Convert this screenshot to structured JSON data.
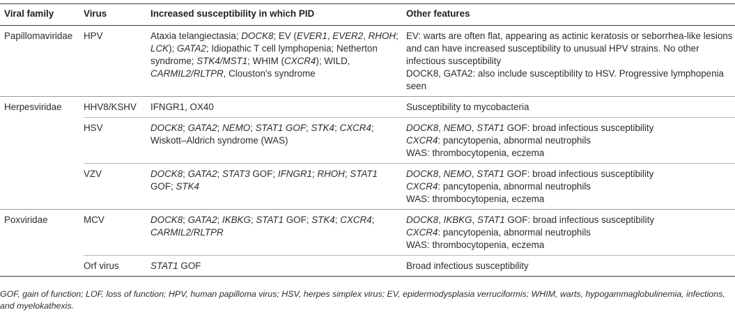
{
  "headers": [
    "Viral family",
    "Virus",
    "Increased susceptibility in which PID",
    "Other features"
  ],
  "rows": [
    {
      "family": "Papillomaviridae",
      "virus": "HPV",
      "pid": [
        {
          "t": "Ataxia telangiectasia; ",
          "i": false
        },
        {
          "t": "DOCK8",
          "i": true
        },
        {
          "t": "; EV (",
          "i": false
        },
        {
          "t": "EVER1",
          "i": true
        },
        {
          "t": ", ",
          "i": false
        },
        {
          "t": "EVER2",
          "i": true
        },
        {
          "t": ", ",
          "i": false
        },
        {
          "t": "RHOH",
          "i": true
        },
        {
          "t": "; ",
          "i": false
        },
        {
          "t": "LCK",
          "i": true
        },
        {
          "t": "); ",
          "i": false
        },
        {
          "t": "GATA2",
          "i": true
        },
        {
          "t": "; Idiopathic T cell lymphopenia; Netherton syndrome; ",
          "i": false
        },
        {
          "t": "STK4/MST1",
          "i": true
        },
        {
          "t": "; WHIM (",
          "i": false
        },
        {
          "t": "CXCR4",
          "i": true
        },
        {
          "t": "); WILD, ",
          "i": false
        },
        {
          "t": "CARMIL2/RLTPR",
          "i": true
        },
        {
          "t": ", Clouston's syndrome",
          "i": false
        }
      ],
      "features": [
        [
          {
            "t": "EV: warts are often flat, appearing as actinic keratosis or seborrhea-like lesions and can have increased susceptibility to unusual HPV strains. No other infectious susceptibility",
            "i": false
          }
        ],
        [
          {
            "t": "DOCK8, GATA2: also include susceptibility to HSV. Progressive lymphopenia seen",
            "i": false
          }
        ]
      ]
    },
    {
      "family": "Herpesviridae",
      "virus": "HHV8/KSHV",
      "pid": [
        {
          "t": "IFNGR1, OX40",
          "i": false
        }
      ],
      "features": [
        [
          {
            "t": "Susceptibility to mycobacteria",
            "i": false
          }
        ]
      ]
    },
    {
      "family": "",
      "virus": "HSV",
      "pid": [
        {
          "t": "DOCK8",
          "i": true
        },
        {
          "t": "; ",
          "i": false
        },
        {
          "t": "GATA2",
          "i": true
        },
        {
          "t": "; ",
          "i": false
        },
        {
          "t": "NEMO",
          "i": true
        },
        {
          "t": "; ",
          "i": false
        },
        {
          "t": "STAT1 GOF",
          "i": true
        },
        {
          "t": "; ",
          "i": false
        },
        {
          "t": "STK4",
          "i": true
        },
        {
          "t": "; ",
          "i": false
        },
        {
          "t": "CXCR4",
          "i": true
        },
        {
          "t": "; Wiskott–Aldrich syndrome (WAS)",
          "i": false
        }
      ],
      "features": [
        [
          {
            "t": "DOCK8",
            "i": true
          },
          {
            "t": ", ",
            "i": false
          },
          {
            "t": "NEMO",
            "i": true
          },
          {
            "t": ", ",
            "i": false
          },
          {
            "t": "STAT1",
            "i": true
          },
          {
            "t": " GOF: broad infectious susceptibility",
            "i": false
          }
        ],
        [
          {
            "t": "CXCR4",
            "i": true
          },
          {
            "t": ": pancytopenia, abnormal neutrophils",
            "i": false
          }
        ],
        [
          {
            "t": "WAS: thrombocytopenia, eczema",
            "i": false
          }
        ]
      ]
    },
    {
      "family": "",
      "virus": "VZV",
      "pid": [
        {
          "t": "DOCK8",
          "i": true
        },
        {
          "t": "; ",
          "i": false
        },
        {
          "t": "GATA2",
          "i": true
        },
        {
          "t": "; ",
          "i": false
        },
        {
          "t": "STAT3",
          "i": true
        },
        {
          "t": " GOF; ",
          "i": false
        },
        {
          "t": "IFNGR1",
          "i": true
        },
        {
          "t": "; ",
          "i": false
        },
        {
          "t": "RHOH",
          "i": true
        },
        {
          "t": "; ",
          "i": false
        },
        {
          "t": "STAT1",
          "i": true
        },
        {
          "t": " GOF; ",
          "i": false
        },
        {
          "t": "STK4",
          "i": true
        }
      ],
      "features": [
        [
          {
            "t": "DOCK8",
            "i": true
          },
          {
            "t": ", ",
            "i": false
          },
          {
            "t": "NEMO",
            "i": true
          },
          {
            "t": ", ",
            "i": false
          },
          {
            "t": "STAT1",
            "i": true
          },
          {
            "t": " GOF: broad infectious susceptibility",
            "i": false
          }
        ],
        [
          {
            "t": "CXCR4",
            "i": true
          },
          {
            "t": ": pancytopenia, abnormal neutrophils",
            "i": false
          }
        ],
        [
          {
            "t": "WAS: thrombocytopenia, eczema",
            "i": false
          }
        ]
      ]
    },
    {
      "family": "Poxviridae",
      "virus": "MCV",
      "pid": [
        {
          "t": "DOCK8",
          "i": true
        },
        {
          "t": "; ",
          "i": false
        },
        {
          "t": "GATA2",
          "i": true
        },
        {
          "t": "; ",
          "i": false
        },
        {
          "t": "IKBKG",
          "i": true
        },
        {
          "t": "; ",
          "i": false
        },
        {
          "t": "STAT1",
          "i": true
        },
        {
          "t": " GOF; ",
          "i": false
        },
        {
          "t": "STK4",
          "i": true
        },
        {
          "t": "; ",
          "i": false
        },
        {
          "t": "CXCR4",
          "i": true
        },
        {
          "t": "; ",
          "i": false
        },
        {
          "t": "CARMIL2/RLTPR",
          "i": true
        }
      ],
      "features": [
        [
          {
            "t": "DOCK8",
            "i": true
          },
          {
            "t": ", ",
            "i": false
          },
          {
            "t": "IKBKG",
            "i": true
          },
          {
            "t": ", ",
            "i": false
          },
          {
            "t": "STAT1",
            "i": true
          },
          {
            "t": " GOF: broad infectious susceptibility",
            "i": false
          }
        ],
        [
          {
            "t": "CXCR4",
            "i": true
          },
          {
            "t": ": pancytopenia, abnormal neutrophils",
            "i": false
          }
        ],
        [
          {
            "t": "WAS: thrombocytopenia, eczema",
            "i": false
          }
        ]
      ]
    },
    {
      "family": "",
      "virus": "Orf virus",
      "pid": [
        {
          "t": "STAT1",
          "i": true
        },
        {
          "t": " GOF",
          "i": false
        }
      ],
      "features": [
        [
          {
            "t": "Broad infectious susceptibility",
            "i": false
          }
        ]
      ]
    }
  ],
  "footnote": "GOF, gain of function; LOF, loss of function; HPV, human papilloma virus; HSV, herpes simplex virus; EV, epidermodysplasia verruciformis; WHIM, warts, hypogammaglobulinemia, infections, and myelokathexis."
}
